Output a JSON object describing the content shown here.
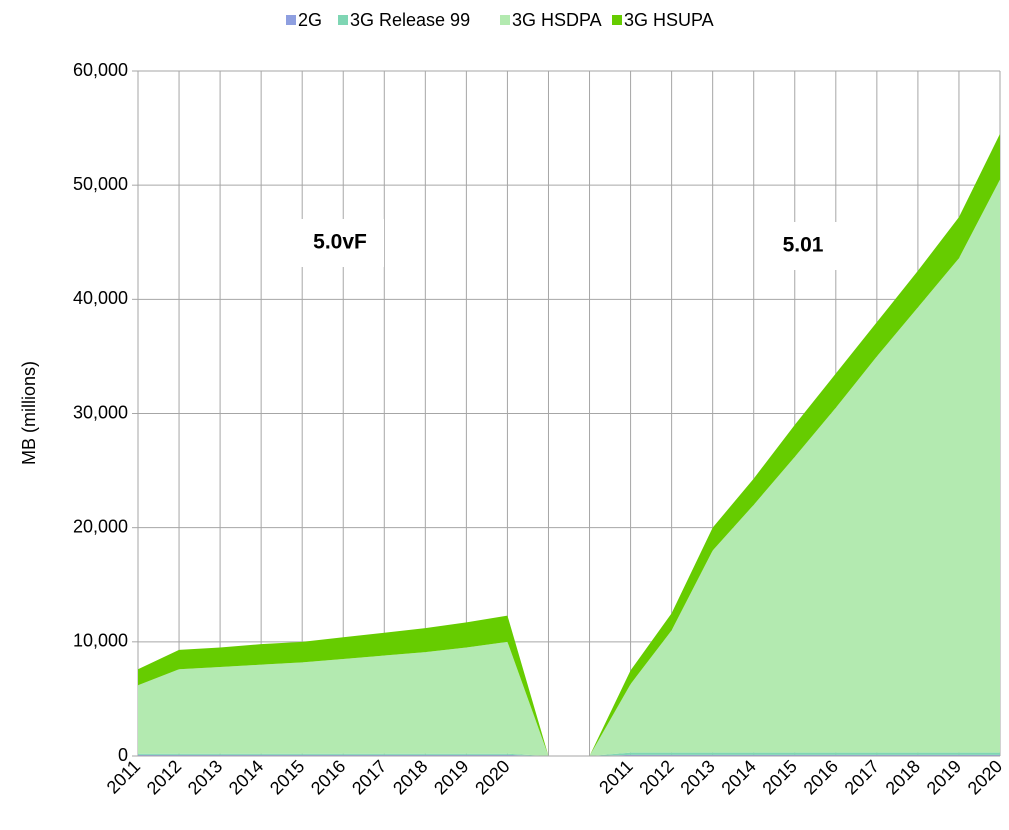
{
  "chart_data": {
    "type": "stacked_area",
    "y_label": "MB (millions)",
    "categories": [
      "2011",
      "2012",
      "2013",
      "2014",
      "2015",
      "2016",
      "2017",
      "2018",
      "2019",
      "2020",
      null,
      null,
      "2011",
      "2012",
      "2013",
      "2014",
      "2015",
      "2016",
      "2017",
      "2018",
      "2019",
      "2020"
    ],
    "series": [
      {
        "name": "2G",
        "color": "#8e9fe0",
        "values": [
          100,
          100,
          100,
          100,
          100,
          100,
          100,
          100,
          100,
          100,
          0,
          0,
          100,
          100,
          100,
          100,
          100,
          100,
          100,
          100,
          100,
          100
        ]
      },
      {
        "name": "3G Release 99",
        "color": "#7fd6b4",
        "values": [
          100,
          100,
          100,
          100,
          100,
          100,
          100,
          100,
          100,
          100,
          0,
          0,
          200,
          200,
          200,
          200,
          200,
          200,
          200,
          200,
          200,
          200
        ]
      },
      {
        "name": "3G HSDPA",
        "color": "#b3eab0",
        "values": [
          6000,
          7400,
          7600,
          7800,
          8000,
          8300,
          8600,
          8900,
          9300,
          9800,
          0,
          0,
          6000,
          10700,
          17700,
          21700,
          25900,
          30200,
          34700,
          39000,
          43300,
          50200
        ]
      },
      {
        "name": "3G HSUPA",
        "color": "#66cc00",
        "values": [
          1400,
          1700,
          1700,
          1800,
          1800,
          1900,
          2000,
          2100,
          2200,
          2300,
          0,
          0,
          1200,
          1500,
          2000,
          2300,
          2800,
          3000,
          3000,
          3200,
          3600,
          4000
        ]
      }
    ],
    "ylim": [
      0,
      60000
    ],
    "yticks": [
      0,
      {
        "value": 10000,
        "label": "10,000"
      },
      {
        "value": 20000,
        "label": "20,000"
      },
      {
        "value": 30000,
        "label": "30,000"
      },
      {
        "value": 40000,
        "label": "40,000"
      },
      {
        "value": 50000,
        "label": "50,000"
      },
      {
        "value": 60000,
        "label": "60,000"
      }
    ],
    "grid": true,
    "legend": "top",
    "annotations": [
      "5.0vF",
      "5.01"
    ]
  }
}
